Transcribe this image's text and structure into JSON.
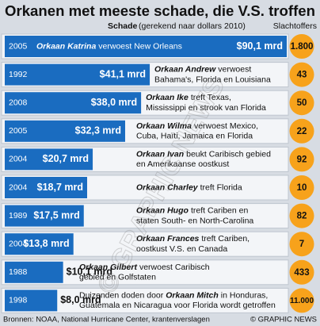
{
  "chart_data": {
    "type": "bar",
    "orientation": "horizontal",
    "title": "Orkanen met meeste schade, die V.S. troffen",
    "value_title": "Schade",
    "value_note": "(gerekend naar dollars 2010)",
    "color": "#1a6cc0",
    "categories": [
      "2005",
      "1992",
      "2008",
      "2005",
      "2004",
      "2004",
      "1989",
      "2004",
      "1988",
      "1998"
    ],
    "values": [
      90.1,
      41.1,
      38.0,
      32.3,
      20.7,
      18.7,
      17.5,
      13.8,
      10.1,
      8.0
    ],
    "value_labels": [
      "$90,1 mrd",
      "$41,1 mrd",
      "$38,0 mrd",
      "$32,3 mrd",
      "$20,7 mrd",
      "$18,7 mrd",
      "$17,5 mrd",
      "$13,8 mrd",
      "$10,1 mrd",
      "$8,0 mrd"
    ],
    "descriptions": [
      {
        "name": "Orkaan Katrina",
        "text": [
          "verwoest New Orleans"
        ]
      },
      {
        "name": "Orkaan Andrew",
        "text": [
          "verwoest",
          "Bahama's, Florida en Louisiana"
        ]
      },
      {
        "name": "Orkaan Ike",
        "text": [
          "treft Texas,",
          "Mississippi en strook van Florida"
        ]
      },
      {
        "name": "Orkaan Wilma",
        "text": [
          "verwoest Mexico,",
          "Cuba, Haïti, Jamaica en Florida"
        ]
      },
      {
        "name": "Orkaan Ivan",
        "text": [
          "beukt Caribisch gebied",
          "en Amerikaanse oostkust"
        ]
      },
      {
        "name": "Orkaan Charley",
        "text": [
          "treft Florida"
        ]
      },
      {
        "name": "Orkaan Hugo",
        "text": [
          "treft Cariben en",
          "staten South- en North-Carolina"
        ]
      },
      {
        "name": "Orkaan Frances",
        "text": [
          "treft Cariben,",
          "oostkust V.S. en Canada"
        ]
      },
      {
        "name": "Orkaan Gilbert",
        "text": [
          "verwoest  Caribisch",
          "gebied en Golfstaten"
        ]
      },
      {
        "lead": "Duizenden doden door",
        "name": "Orkaan Mitch",
        "text": [
          "in Honduras,",
          "Guatemala en Nicaragua voor Florida wordt getroffen"
        ]
      }
    ],
    "deaths": {
      "name": "Slachtoffers",
      "color": "#f7a21b",
      "values": [
        1800,
        43,
        50,
        22,
        92,
        10,
        82,
        7,
        433,
        11000
      ],
      "value_labels": [
        "1.800",
        "43",
        "50",
        "22",
        "92",
        "10",
        "82",
        "7",
        "433",
        "11.000"
      ]
    },
    "watermark": "© GRAPHIC NEWS",
    "sources": "Bronnen: NOAA, National Hurricane Center, krantenverslagen",
    "credit": "© GRAPHIC NEWS"
  }
}
